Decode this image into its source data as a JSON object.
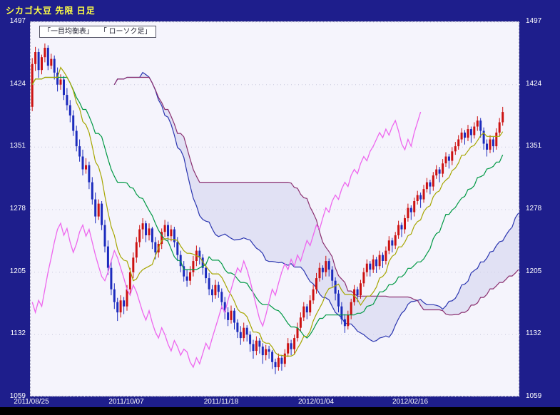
{
  "header": {
    "title": "シカゴ大豆 先限  日足"
  },
  "legend": {
    "item1": "「一目均衡表」",
    "item2": "「 ローソク足」"
  },
  "colors": {
    "background": "#1e1e8c",
    "plot_bg": "#f5f4fc",
    "title": "#ffff44",
    "axis_text": "#ffffff",
    "candle_up": "#cc1111",
    "candle_down": "#1c2bbd",
    "tenkan": "#a6a600",
    "kijun": "#009944",
    "chikou": "#ee66ee",
    "senkou_a": "#2a35b0",
    "senkou_b": "#8b3070",
    "cloud": "#d4d4ef",
    "grid": "#c8c8dc"
  },
  "chart_data": {
    "type": "candlestick",
    "overlay": "ichimoku",
    "title": "シカゴ大豆 先限 日足",
    "ylim": [
      1059,
      1497
    ],
    "y_ticks": [
      1497,
      1424,
      1351,
      1278,
      1205,
      1132,
      1059
    ],
    "x_ticks": [
      "2011/08/25",
      "2011/10/07",
      "2011/11/18",
      "2012/01/04",
      "2012/02/16"
    ],
    "x_tick_indices": [
      0,
      30,
      60,
      90,
      120
    ],
    "right_margin_slots": 5,
    "ichimoku_params": {
      "tenkan": 9,
      "kijun": 26,
      "senkou_b": 52,
      "shift": 26
    },
    "candles": [
      [
        1398,
        1455,
        1393,
        1448
      ],
      [
        1448,
        1468,
        1440,
        1462
      ],
      [
        1462,
        1466,
        1432,
        1441
      ],
      [
        1441,
        1459,
        1436,
        1456
      ],
      [
        1456,
        1472,
        1450,
        1467
      ],
      [
        1467,
        1470,
        1441,
        1446
      ],
      [
        1446,
        1460,
        1442,
        1454
      ],
      [
        1454,
        1458,
        1430,
        1438
      ],
      [
        1438,
        1444,
        1416,
        1424
      ],
      [
        1424,
        1436,
        1418,
        1430
      ],
      [
        1430,
        1434,
        1406,
        1412
      ],
      [
        1412,
        1420,
        1394,
        1400
      ],
      [
        1400,
        1406,
        1380,
        1388
      ],
      [
        1388,
        1394,
        1364,
        1370
      ],
      [
        1370,
        1376,
        1346,
        1352
      ],
      [
        1352,
        1360,
        1334,
        1340
      ],
      [
        1340,
        1348,
        1318,
        1325
      ],
      [
        1325,
        1338,
        1320,
        1330
      ],
      [
        1330,
        1334,
        1302,
        1310
      ],
      [
        1310,
        1316,
        1284,
        1290
      ],
      [
        1290,
        1298,
        1262,
        1270
      ],
      [
        1270,
        1290,
        1266,
        1285
      ],
      [
        1285,
        1288,
        1254,
        1260
      ],
      [
        1260,
        1266,
        1228,
        1235
      ],
      [
        1235,
        1242,
        1202,
        1210
      ],
      [
        1210,
        1218,
        1178,
        1185
      ],
      [
        1185,
        1192,
        1162,
        1170
      ],
      [
        1170,
        1175,
        1148,
        1158
      ],
      [
        1158,
        1178,
        1152,
        1172
      ],
      [
        1172,
        1176,
        1156,
        1165
      ],
      [
        1165,
        1190,
        1160,
        1185
      ],
      [
        1185,
        1210,
        1180,
        1205
      ],
      [
        1205,
        1228,
        1198,
        1222
      ],
      [
        1222,
        1246,
        1216,
        1240
      ],
      [
        1240,
        1260,
        1234,
        1255
      ],
      [
        1255,
        1268,
        1244,
        1262
      ],
      [
        1262,
        1265,
        1240,
        1248
      ],
      [
        1248,
        1262,
        1242,
        1256
      ],
      [
        1256,
        1258,
        1232,
        1240
      ],
      [
        1240,
        1246,
        1220,
        1228
      ],
      [
        1228,
        1242,
        1222,
        1238
      ],
      [
        1238,
        1256,
        1232,
        1252
      ],
      [
        1252,
        1266,
        1246,
        1260
      ],
      [
        1260,
        1264,
        1240,
        1247
      ],
      [
        1247,
        1260,
        1241,
        1255
      ],
      [
        1255,
        1258,
        1234,
        1240
      ],
      [
        1240,
        1246,
        1218,
        1225
      ],
      [
        1225,
        1230,
        1205,
        1212
      ],
      [
        1212,
        1218,
        1194,
        1200
      ],
      [
        1200,
        1208,
        1188,
        1195
      ],
      [
        1195,
        1212,
        1190,
        1205
      ],
      [
        1205,
        1224,
        1200,
        1218
      ],
      [
        1218,
        1236,
        1212,
        1230
      ],
      [
        1230,
        1234,
        1214,
        1222
      ],
      [
        1222,
        1226,
        1202,
        1210
      ],
      [
        1210,
        1215,
        1192,
        1198
      ],
      [
        1198,
        1204,
        1178,
        1185
      ],
      [
        1185,
        1190,
        1170,
        1178
      ],
      [
        1178,
        1196,
        1174,
        1190
      ],
      [
        1190,
        1194,
        1175,
        1182
      ],
      [
        1182,
        1186,
        1162,
        1170
      ],
      [
        1170,
        1176,
        1150,
        1158
      ],
      [
        1158,
        1164,
        1142,
        1149
      ],
      [
        1149,
        1166,
        1145,
        1160
      ],
      [
        1160,
        1163,
        1138,
        1146
      ],
      [
        1146,
        1150,
        1128,
        1135
      ],
      [
        1135,
        1142,
        1120,
        1128
      ],
      [
        1128,
        1146,
        1124,
        1140
      ],
      [
        1140,
        1143,
        1124,
        1132
      ],
      [
        1132,
        1136,
        1112,
        1121
      ],
      [
        1121,
        1126,
        1104,
        1113
      ],
      [
        1113,
        1130,
        1108,
        1125
      ],
      [
        1125,
        1128,
        1110,
        1118
      ],
      [
        1118,
        1122,
        1098,
        1108
      ],
      [
        1108,
        1120,
        1102,
        1115
      ],
      [
        1115,
        1119,
        1104,
        1112
      ],
      [
        1112,
        1114,
        1092,
        1100
      ],
      [
        1100,
        1104,
        1086,
        1094
      ],
      [
        1094,
        1110,
        1090,
        1105
      ],
      [
        1105,
        1108,
        1090,
        1098
      ],
      [
        1098,
        1115,
        1094,
        1110
      ],
      [
        1110,
        1128,
        1106,
        1122
      ],
      [
        1122,
        1126,
        1108,
        1115
      ],
      [
        1115,
        1132,
        1110,
        1128
      ],
      [
        1128,
        1146,
        1124,
        1140
      ],
      [
        1140,
        1158,
        1136,
        1152
      ],
      [
        1152,
        1170,
        1148,
        1165
      ],
      [
        1165,
        1168,
        1150,
        1158
      ],
      [
        1158,
        1178,
        1154,
        1172
      ],
      [
        1172,
        1190,
        1168,
        1185
      ],
      [
        1185,
        1204,
        1180,
        1198
      ],
      [
        1198,
        1216,
        1194,
        1210
      ],
      [
        1210,
        1213,
        1196,
        1205
      ],
      [
        1205,
        1224,
        1200,
        1218
      ],
      [
        1218,
        1221,
        1200,
        1208
      ],
      [
        1208,
        1212,
        1188,
        1195
      ],
      [
        1195,
        1199,
        1172,
        1180
      ],
      [
        1180,
        1184,
        1158,
        1165
      ],
      [
        1165,
        1170,
        1144,
        1150
      ],
      [
        1150,
        1156,
        1134,
        1142
      ],
      [
        1142,
        1160,
        1138,
        1155
      ],
      [
        1155,
        1174,
        1150,
        1170
      ],
      [
        1170,
        1190,
        1166,
        1185
      ],
      [
        1185,
        1188,
        1170,
        1178
      ],
      [
        1178,
        1196,
        1174,
        1192
      ],
      [
        1192,
        1210,
        1188,
        1205
      ],
      [
        1205,
        1220,
        1200,
        1215
      ],
      [
        1215,
        1218,
        1200,
        1208
      ],
      [
        1208,
        1225,
        1204,
        1220
      ],
      [
        1220,
        1223,
        1204,
        1212
      ],
      [
        1212,
        1230,
        1208,
        1225
      ],
      [
        1225,
        1228,
        1210,
        1218
      ],
      [
        1218,
        1235,
        1214,
        1230
      ],
      [
        1230,
        1247,
        1226,
        1242
      ],
      [
        1242,
        1245,
        1228,
        1236
      ],
      [
        1236,
        1252,
        1232,
        1248
      ],
      [
        1248,
        1265,
        1244,
        1260
      ],
      [
        1260,
        1263,
        1246,
        1255
      ],
      [
        1255,
        1272,
        1250,
        1268
      ],
      [
        1268,
        1285,
        1264,
        1280
      ],
      [
        1280,
        1283,
        1266,
        1275
      ],
      [
        1275,
        1292,
        1270,
        1288
      ],
      [
        1288,
        1300,
        1284,
        1295
      ],
      [
        1295,
        1298,
        1280,
        1290
      ],
      [
        1290,
        1307,
        1286,
        1302
      ],
      [
        1302,
        1315,
        1298,
        1310
      ],
      [
        1310,
        1313,
        1296,
        1305
      ],
      [
        1305,
        1322,
        1300,
        1318
      ],
      [
        1318,
        1330,
        1314,
        1325
      ],
      [
        1325,
        1328,
        1310,
        1320
      ],
      [
        1320,
        1337,
        1316,
        1332
      ],
      [
        1332,
        1345,
        1328,
        1340
      ],
      [
        1340,
        1343,
        1326,
        1335
      ],
      [
        1335,
        1351,
        1330,
        1346
      ],
      [
        1346,
        1357,
        1342,
        1352
      ],
      [
        1352,
        1365,
        1348,
        1360
      ],
      [
        1360,
        1373,
        1356,
        1368
      ],
      [
        1368,
        1371,
        1354,
        1362
      ],
      [
        1362,
        1377,
        1358,
        1372
      ],
      [
        1372,
        1375,
        1356,
        1365
      ],
      [
        1365,
        1380,
        1361,
        1375
      ],
      [
        1375,
        1387,
        1370,
        1382
      ],
      [
        1382,
        1385,
        1362,
        1370
      ],
      [
        1370,
        1374,
        1348,
        1355
      ],
      [
        1355,
        1360,
        1340,
        1348
      ],
      [
        1348,
        1365,
        1344,
        1360
      ],
      [
        1360,
        1363,
        1345,
        1352
      ],
      [
        1352,
        1373,
        1348,
        1368
      ],
      [
        1368,
        1385,
        1364,
        1380
      ],
      [
        1380,
        1398,
        1376,
        1392
      ]
    ]
  }
}
